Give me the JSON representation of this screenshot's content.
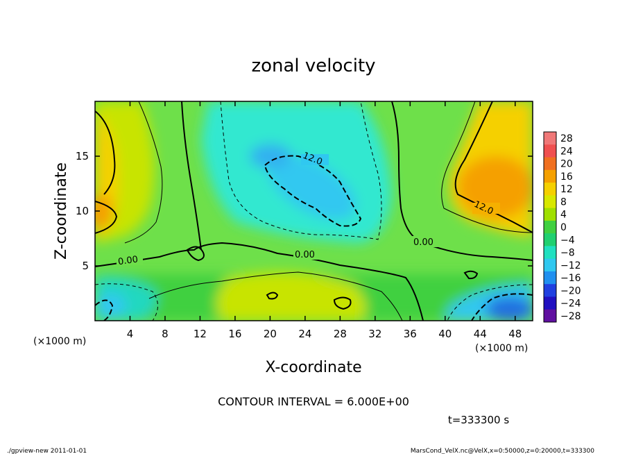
{
  "chart_data": {
    "type": "heatmap",
    "title": "zonal velocity",
    "xlabel": "X-coordinate",
    "ylabel": "Z-coordinate",
    "x_unit": "(×1000 m)",
    "y_unit": "(×1000 m)",
    "xlim": [
      0,
      50
    ],
    "ylim": [
      0,
      20
    ],
    "x_ticks": [
      4,
      8,
      12,
      16,
      20,
      24,
      28,
      32,
      36,
      40,
      44,
      48
    ],
    "y_ticks": [
      5,
      10,
      15
    ],
    "colorbar": {
      "levels": [
        28,
        24,
        20,
        16,
        12,
        8,
        4,
        0,
        -4,
        -8,
        -12,
        -16,
        -20,
        -24,
        -28
      ],
      "colors": [
        "#f07878",
        "#f05050",
        "#f07020",
        "#f5a000",
        "#f5d000",
        "#d8e800",
        "#a0e000",
        "#40d040",
        "#20d070",
        "#20e0c0",
        "#30c8f0",
        "#2090f0",
        "#2040e0",
        "#2010c0",
        "#6010a0"
      ]
    },
    "contour_interval": "CONTOUR INTERVAL = 6.000E+00",
    "contour_labels": [
      "12.0",
      "0.00",
      "0.00",
      "0.00",
      "12.0"
    ],
    "time_label": "t=333300 s",
    "footer_left": "./gpview-new  2011-01-01",
    "footer_right": "MarsCond_VelX.nc@VelX,x=0:50000,z=0:20000,t=333300"
  }
}
